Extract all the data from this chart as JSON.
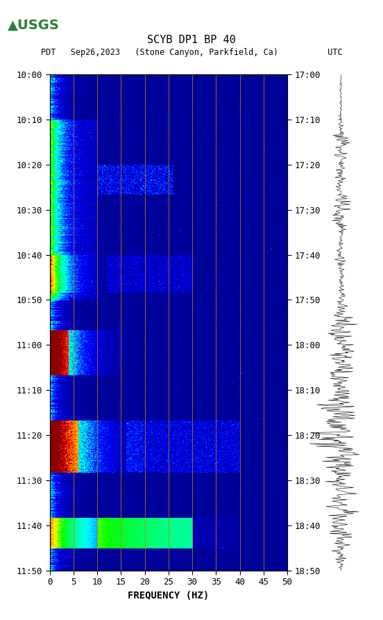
{
  "title_line1": "SCYB DP1 BP 40",
  "title_line2": "PDT   Sep26,2023   (Stone Canyon, Parkfield, Ca)          UTC",
  "xlabel": "FREQUENCY (HZ)",
  "freq_min": 0,
  "freq_max": 50,
  "time_start_pdt": "10:00",
  "time_end_pdt": "11:50",
  "time_start_utc": "17:00",
  "time_end_utc": "18:50",
  "pdt_ticks": [
    "10:00",
    "10:10",
    "10:20",
    "10:30",
    "10:40",
    "10:50",
    "11:00",
    "11:10",
    "11:20",
    "11:30",
    "11:40",
    "11:50"
  ],
  "utc_ticks": [
    "17:00",
    "17:10",
    "17:20",
    "17:30",
    "17:40",
    "17:50",
    "18:00",
    "18:10",
    "18:20",
    "18:30",
    "18:40",
    "18:50"
  ],
  "freq_ticks": [
    0,
    5,
    10,
    15,
    20,
    25,
    30,
    35,
    40,
    45,
    50
  ],
  "vertical_lines_freq": [
    5,
    10,
    15,
    20,
    25,
    30,
    35,
    40,
    45
  ],
  "vertical_line_color": "#b8860b",
  "background_color": "#ffffff",
  "spectrogram_bg": "#00008b",
  "usgs_color": "#2e7d32",
  "fig_width": 5.52,
  "fig_height": 8.92
}
